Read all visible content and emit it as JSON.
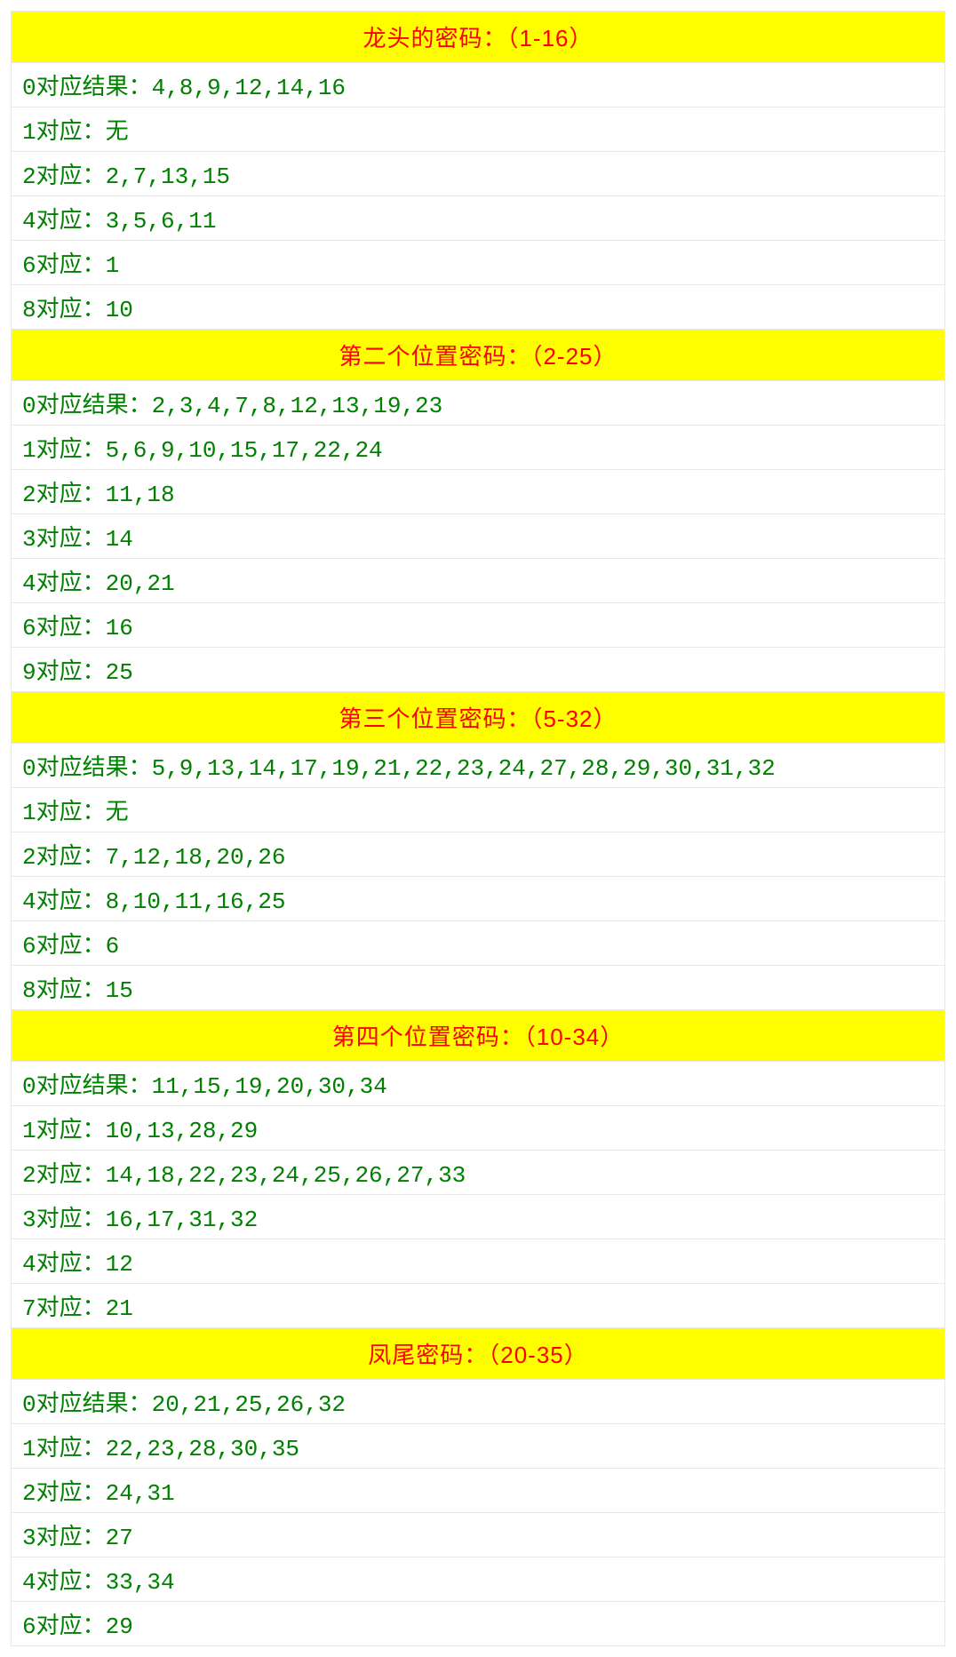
{
  "colors": {
    "header_bg": "#ffff00",
    "header_text": "#ff0000",
    "row_text": "#008000",
    "row_bg": "#ffffff",
    "border": "#e8e8e8"
  },
  "typography": {
    "header_fontsize": 26,
    "row_fontsize": 26,
    "font_family": "Microsoft YaHei, SimSun, monospace"
  },
  "sections": [
    {
      "title": "龙头的密码：（1-16）",
      "rows": [
        "0对应结果：4,8,9,12,14,16",
        "1对应：无",
        "2对应：2,7,13,15",
        "4对应：3,5,6,11",
        "6对应：1",
        "8对应：10"
      ]
    },
    {
      "title": "第二个位置密码：（2-25）",
      "rows": [
        "0对应结果：2,3,4,7,8,12,13,19,23",
        "1对应：5,6,9,10,15,17,22,24",
        "2对应：11,18",
        "3对应：14",
        "4对应：20,21",
        "6对应：16",
        "9对应：25"
      ]
    },
    {
      "title": "第三个位置密码：（5-32）",
      "rows": [
        "0对应结果：5,9,13,14,17,19,21,22,23,24,27,28,29,30,31,32",
        "1对应：无",
        "2对应：7,12,18,20,26",
        "4对应：8,10,11,16,25",
        "6对应：6",
        "8对应：15"
      ]
    },
    {
      "title": "第四个位置密码：（10-34）",
      "rows": [
        "0对应结果：11,15,19,20,30,34",
        "1对应：10,13,28,29",
        "2对应：14,18,22,23,24,25,26,27,33",
        "3对应：16,17,31,32",
        "4对应：12",
        "7对应：21"
      ]
    },
    {
      "title": "凤尾密码：（20-35）",
      "rows": [
        "0对应结果：20,21,25,26,32",
        "1对应：22,23,28,30,35",
        "2对应：24,31",
        "3对应：27",
        "4对应：33,34",
        "6对应：29"
      ]
    }
  ]
}
